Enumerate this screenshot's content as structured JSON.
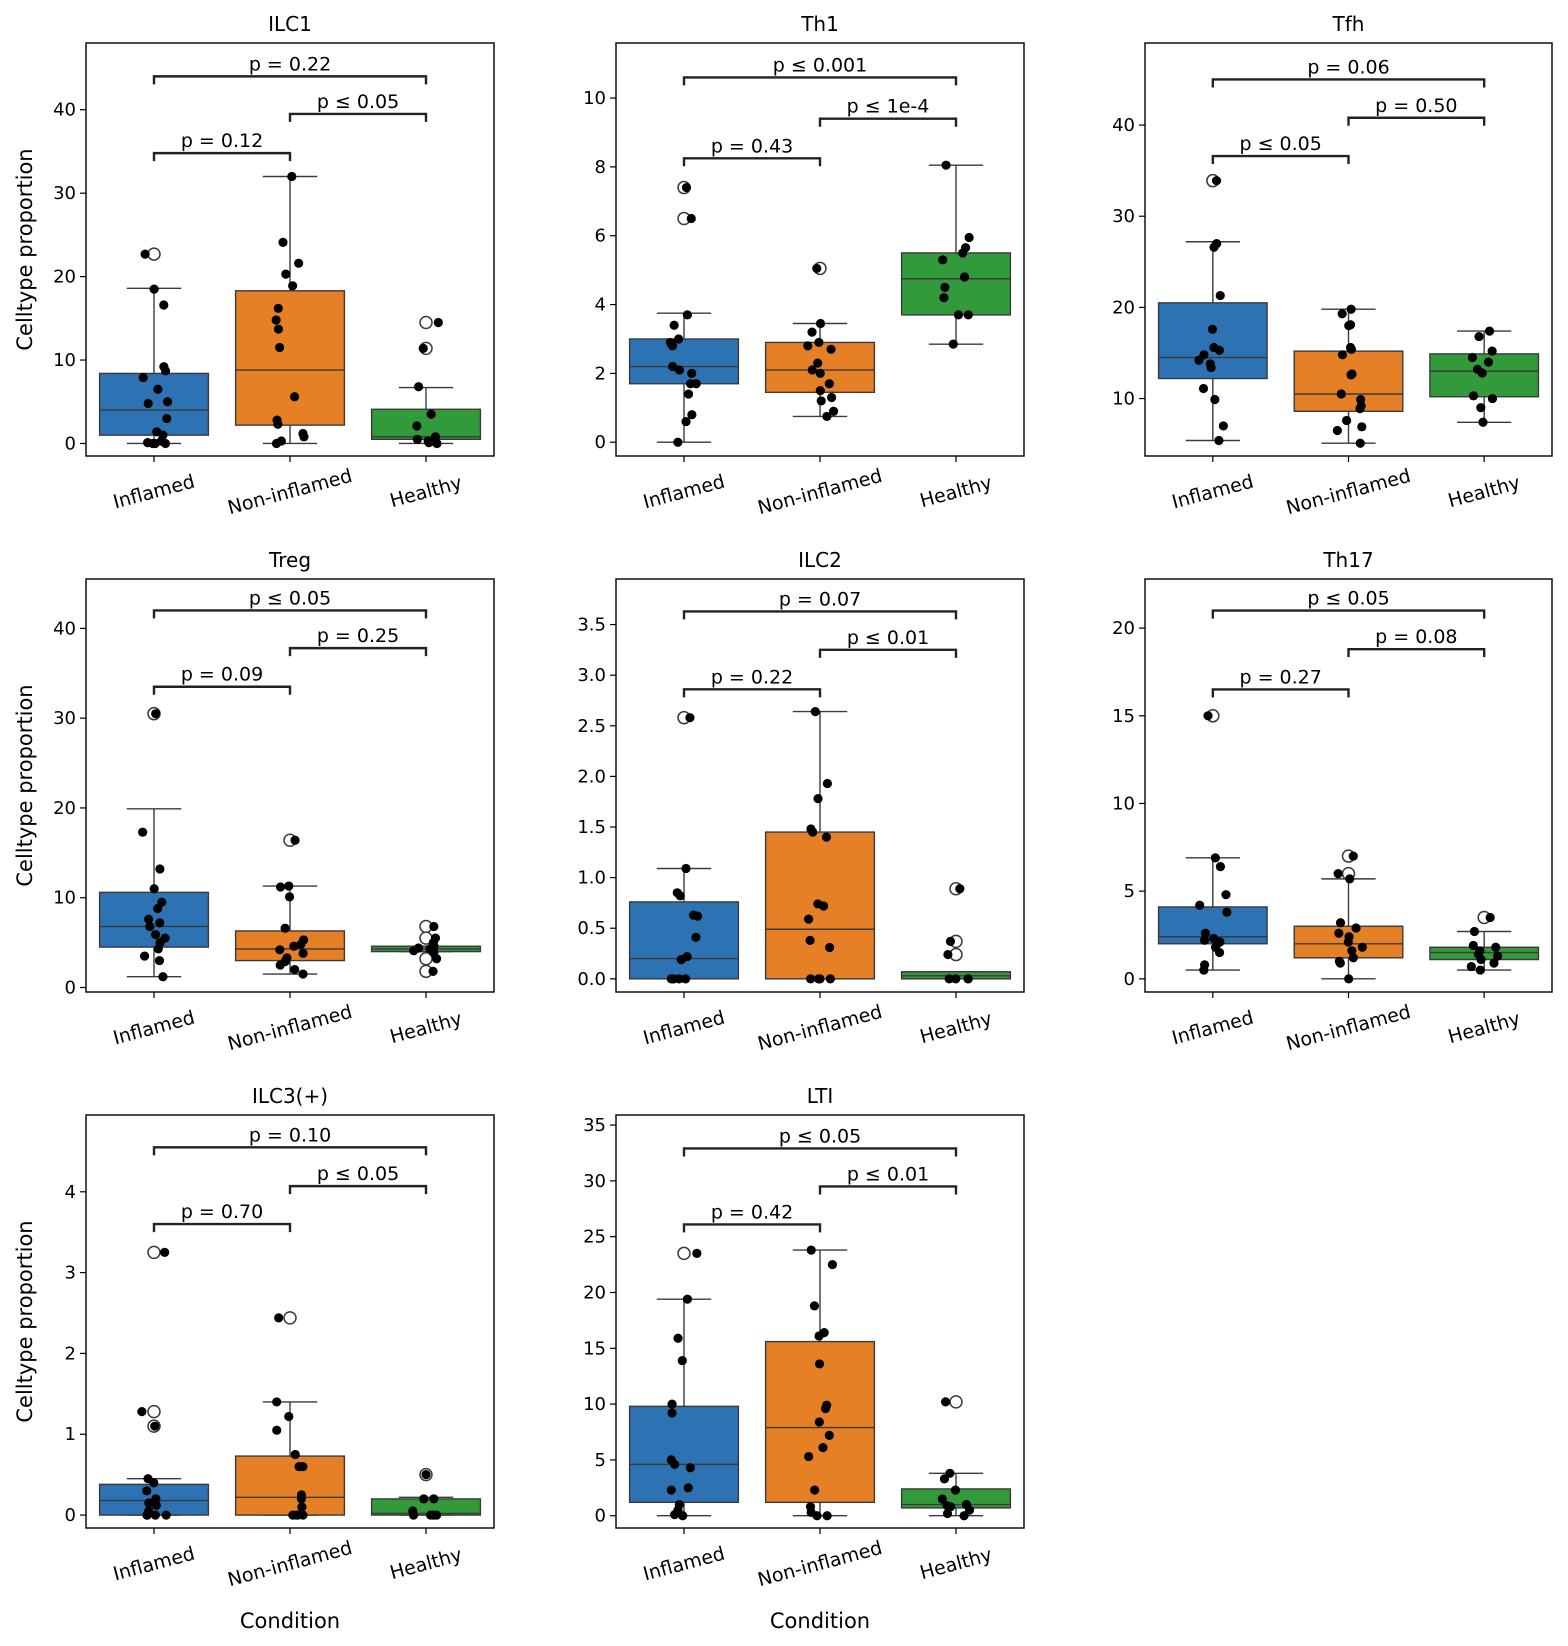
{
  "chart_data": [
    {
      "type": "box",
      "title": "ILC1",
      "ylabel": "Celltype proportion",
      "xlabel": "",
      "categories": [
        "Inflamed",
        "Non-inflamed",
        "Healthy"
      ],
      "ylim": [
        -1.5,
        48.0
      ],
      "yticks": [
        0,
        10,
        20,
        30,
        40
      ],
      "colors": [
        "#2d72b3",
        "#e68026",
        "#329a3a"
      ],
      "boxes": [
        {
          "q1": 1.0,
          "median": 4.0,
          "q3": 8.4,
          "whisker_low": 0,
          "whisker_high": 18.6,
          "outliers": [
            22.7
          ]
        },
        {
          "q1": 2.2,
          "median": 8.8,
          "q3": 18.3,
          "whisker_low": 0,
          "whisker_high": 32.0,
          "outliers": []
        },
        {
          "q1": 0.5,
          "median": 0.8,
          "q3": 4.1,
          "whisker_low": 0,
          "whisker_high": 6.7,
          "outliers": [
            14.5,
            11.4
          ]
        }
      ],
      "points": [
        [
          22.7,
          18.5,
          16.6,
          9.2,
          8.7,
          7.9,
          6.5,
          5.0,
          4.8,
          3.0,
          1.4,
          1.0,
          0.3,
          0.1,
          0.0,
          0.0,
          0.0
        ],
        [
          32.0,
          24.1,
          21.6,
          20.3,
          18.9,
          16.2,
          14.8,
          13.7,
          11.5,
          5.6,
          2.8,
          2.3,
          1.2,
          0.8,
          0.3,
          0.0
        ],
        [
          14.5,
          11.4,
          6.8,
          3.5,
          2.1,
          0.8,
          0.5,
          0.3,
          0.2,
          0.1,
          0.0
        ]
      ],
      "pvalues": [
        {
          "label": "p = 0.22",
          "from": 0,
          "to": 2,
          "y": 44.0
        },
        {
          "label": "p ≤ 0.05",
          "from": 1,
          "to": 2,
          "y": 39.5
        },
        {
          "label": "p = 0.12",
          "from": 0,
          "to": 1,
          "y": 34.8
        }
      ]
    },
    {
      "type": "box",
      "title": "Th1",
      "ylabel": "",
      "xlabel": "",
      "categories": [
        "Inflamed",
        "Non-inflamed",
        "Healthy"
      ],
      "ylim": [
        -0.4,
        11.6
      ],
      "yticks": [
        0,
        2,
        4,
        6,
        8,
        10
      ],
      "colors": [
        "#2d72b3",
        "#e68026",
        "#329a3a"
      ],
      "boxes": [
        {
          "q1": 1.7,
          "median": 2.2,
          "q3": 3.0,
          "whisker_low": 0,
          "whisker_high": 3.75,
          "outliers": [
            7.4,
            6.5
          ]
        },
        {
          "q1": 1.45,
          "median": 2.1,
          "q3": 2.9,
          "whisker_low": 0.75,
          "whisker_high": 3.45,
          "outliers": [
            5.05
          ]
        },
        {
          "q1": 3.7,
          "median": 4.75,
          "q3": 5.5,
          "whisker_low": 2.85,
          "whisker_high": 8.05,
          "outliers": []
        }
      ],
      "points": [
        [
          7.4,
          6.5,
          3.7,
          3.4,
          3.0,
          2.9,
          2.8,
          2.2,
          2.1,
          2.0,
          1.7,
          1.7,
          1.4,
          0.8,
          0.6,
          0.0
        ],
        [
          5.05,
          3.45,
          3.2,
          2.9,
          2.8,
          2.7,
          2.3,
          2.1,
          2.0,
          1.7,
          1.5,
          1.3,
          1.2,
          0.9,
          0.75
        ],
        [
          8.05,
          5.95,
          5.65,
          5.5,
          5.3,
          4.8,
          4.5,
          4.2,
          3.7,
          3.7,
          2.85
        ]
      ],
      "pvalues": [
        {
          "label": "p ≤ 0.001",
          "from": 0,
          "to": 2,
          "y": 10.6
        },
        {
          "label": "p ≤ 1e-4",
          "from": 1,
          "to": 2,
          "y": 9.4
        },
        {
          "label": "p = 0.43",
          "from": 0,
          "to": 1,
          "y": 8.25
        }
      ]
    },
    {
      "type": "box",
      "title": "Tfh",
      "ylabel": "",
      "xlabel": "",
      "categories": [
        "Inflamed",
        "Non-inflamed",
        "Healthy"
      ],
      "ylim": [
        3.7,
        49.0
      ],
      "yticks": [
        10,
        20,
        30,
        40
      ],
      "colors": [
        "#2d72b3",
        "#e68026",
        "#329a3a"
      ],
      "boxes": [
        {
          "q1": 12.2,
          "median": 14.5,
          "q3": 20.5,
          "whisker_low": 5.4,
          "whisker_high": 27.2,
          "outliers": [
            33.9
          ]
        },
        {
          "q1": 8.6,
          "median": 10.5,
          "q3": 15.2,
          "whisker_low": 5.1,
          "whisker_high": 19.8,
          "outliers": []
        },
        {
          "q1": 10.2,
          "median": 13.0,
          "q3": 14.9,
          "whisker_low": 7.4,
          "whisker_high": 17.4,
          "outliers": []
        }
      ],
      "points": [
        [
          33.9,
          27.0,
          26.6,
          21.3,
          17.6,
          15.6,
          15.3,
          14.8,
          14.2,
          13.8,
          13.4,
          11.1,
          9.9,
          7.0,
          5.4
        ],
        [
          19.8,
          19.3,
          18.1,
          18.0,
          15.6,
          15.4,
          14.8,
          12.7,
          12.6,
          10.5,
          9.9,
          9.2,
          8.9,
          7.6,
          6.9,
          6.5,
          5.1
        ],
        [
          17.4,
          16.8,
          15.2,
          14.5,
          14.0,
          13.2,
          12.8,
          10.3,
          10.0,
          9.0,
          7.4
        ]
      ],
      "pvalues": [
        {
          "label": "p = 0.06",
          "from": 0,
          "to": 2,
          "y": 45.0
        },
        {
          "label": "p = 0.50",
          "from": 1,
          "to": 2,
          "y": 40.8
        },
        {
          "label": "p ≤ 0.05",
          "from": 0,
          "to": 1,
          "y": 36.6
        }
      ]
    },
    {
      "type": "box",
      "title": "Treg",
      "ylabel": "Celltype proportion",
      "xlabel": "",
      "categories": [
        "Inflamed",
        "Non-inflamed",
        "Healthy"
      ],
      "ylim": [
        -0.5,
        45.5
      ],
      "yticks": [
        0,
        10,
        20,
        30,
        40
      ],
      "colors": [
        "#2d72b3",
        "#e68026",
        "#329a3a"
      ],
      "boxes": [
        {
          "q1": 4.5,
          "median": 6.8,
          "q3": 10.6,
          "whisker_low": 1.2,
          "whisker_high": 19.9,
          "outliers": [
            30.5
          ]
        },
        {
          "q1": 3.0,
          "median": 4.3,
          "q3": 6.3,
          "whisker_low": 1.5,
          "whisker_high": 11.3,
          "outliers": [
            16.4
          ]
        },
        {
          "q1": 4.0,
          "median": 4.3,
          "q3": 4.6,
          "whisker_low": 4.0,
          "whisker_high": 4.6,
          "outliers": [
            6.8,
            5.5,
            3.2,
            1.8
          ]
        }
      ],
      "points": [
        [
          30.5,
          17.3,
          13.2,
          11.0,
          9.5,
          8.8,
          7.6,
          7.2,
          6.8,
          5.9,
          5.5,
          5.0,
          4.3,
          3.5,
          3.0,
          1.2
        ],
        [
          16.4,
          11.3,
          11.2,
          10.1,
          6.6,
          5.3,
          4.8,
          4.6,
          4.2,
          3.8,
          3.3,
          2.9,
          2.5,
          2.0,
          1.5
        ],
        [
          6.8,
          5.5,
          5.0,
          4.6,
          4.4,
          4.3,
          4.1,
          3.9,
          3.2,
          1.8
        ]
      ],
      "pvalues": [
        {
          "label": "p ≤ 0.05",
          "from": 0,
          "to": 2,
          "y": 42.0
        },
        {
          "label": "p = 0.25",
          "from": 1,
          "to": 2,
          "y": 37.8
        },
        {
          "label": "p = 0.09",
          "from": 0,
          "to": 1,
          "y": 33.5
        }
      ]
    },
    {
      "type": "box",
      "title": "ILC2",
      "ylabel": "",
      "xlabel": "",
      "categories": [
        "Inflamed",
        "Non-inflamed",
        "Healthy"
      ],
      "ylim": [
        -0.13,
        3.95
      ],
      "yticks": [
        "0.0",
        "0.5",
        "1.0",
        "1.5",
        "2.0",
        "2.5",
        "3.0",
        "3.5"
      ],
      "colors": [
        "#2d72b3",
        "#e68026",
        "#329a3a"
      ],
      "boxes": [
        {
          "q1": 0.0,
          "median": 0.2,
          "q3": 0.76,
          "whisker_low": 0,
          "whisker_high": 1.09,
          "outliers": [
            2.58
          ]
        },
        {
          "q1": 0.0,
          "median": 0.49,
          "q3": 1.45,
          "whisker_low": 0,
          "whisker_high": 2.64,
          "outliers": []
        },
        {
          "q1": 0.0,
          "median": 0.03,
          "q3": 0.07,
          "whisker_low": 0,
          "whisker_high": 0.07,
          "outliers": [
            0.89,
            0.37,
            0.24
          ]
        }
      ],
      "points": [
        [
          2.58,
          1.09,
          0.85,
          0.82,
          0.63,
          0.62,
          0.41,
          0.22,
          0.19,
          0.0,
          0.0,
          0.0,
          0.0,
          0.0
        ],
        [
          2.64,
          1.93,
          1.78,
          1.48,
          1.45,
          1.4,
          0.74,
          0.72,
          0.59,
          0.38,
          0.31,
          0.0,
          0.0,
          0.0,
          0.0
        ],
        [
          0.89,
          0.37,
          0.24,
          0.0,
          0.0,
          0.0,
          0.0
        ]
      ],
      "pvalues": [
        {
          "label": "p = 0.07",
          "from": 0,
          "to": 2,
          "y": 3.63
        },
        {
          "label": "p ≤ 0.01",
          "from": 1,
          "to": 2,
          "y": 3.25
        },
        {
          "label": "p = 0.22",
          "from": 0,
          "to": 1,
          "y": 2.86
        }
      ]
    },
    {
      "type": "box",
      "title": "Th17",
      "ylabel": "",
      "xlabel": "",
      "categories": [
        "Inflamed",
        "Non-inflamed",
        "Healthy"
      ],
      "ylim": [
        -0.75,
        22.8
      ],
      "yticks": [
        0,
        5,
        10,
        15,
        20
      ],
      "colors": [
        "#2d72b3",
        "#e68026",
        "#329a3a"
      ],
      "boxes": [
        {
          "q1": 2.0,
          "median": 2.4,
          "q3": 4.1,
          "whisker_low": 0.5,
          "whisker_high": 6.9,
          "outliers": [
            15.0
          ]
        },
        {
          "q1": 1.2,
          "median": 2.0,
          "q3": 3.0,
          "whisker_low": 0.0,
          "whisker_high": 5.7,
          "outliers": [
            7.0,
            6.0
          ]
        },
        {
          "q1": 1.1,
          "median": 1.5,
          "q3": 1.8,
          "whisker_low": 0.5,
          "whisker_high": 2.7,
          "outliers": [
            3.5
          ]
        }
      ],
      "points": [
        [
          15.0,
          6.9,
          6.4,
          4.8,
          4.2,
          3.8,
          2.6,
          2.3,
          2.2,
          2.1,
          2.0,
          1.8,
          1.5,
          0.8,
          0.5
        ],
        [
          7.0,
          6.0,
          5.7,
          3.2,
          2.9,
          2.6,
          2.4,
          2.1,
          1.8,
          1.6,
          1.2,
          1.0,
          0.9,
          0.0
        ],
        [
          3.5,
          2.7,
          1.9,
          1.8,
          1.6,
          1.4,
          1.3,
          1.1,
          0.9,
          0.7,
          0.5
        ]
      ],
      "pvalues": [
        {
          "label": "p ≤ 0.05",
          "from": 0,
          "to": 2,
          "y": 21.0
        },
        {
          "label": "p = 0.08",
          "from": 1,
          "to": 2,
          "y": 18.8
        },
        {
          "label": "p = 0.27",
          "from": 0,
          "to": 1,
          "y": 16.5
        }
      ]
    },
    {
      "type": "box",
      "title": "ILC3(+)",
      "ylabel": "Celltype proportion",
      "xlabel": "Condition",
      "categories": [
        "Inflamed",
        "Non-inflamed",
        "Healthy"
      ],
      "ylim": [
        -0.16,
        4.95
      ],
      "yticks": [
        0,
        1,
        2,
        3,
        4
      ],
      "colors": [
        "#2d72b3",
        "#e68026",
        "#329a3a"
      ],
      "boxes": [
        {
          "q1": 0.0,
          "median": 0.18,
          "q3": 0.38,
          "whisker_low": 0,
          "whisker_high": 0.45,
          "outliers": [
            3.25,
            1.28,
            1.1
          ]
        },
        {
          "q1": 0.0,
          "median": 0.22,
          "q3": 0.73,
          "whisker_low": 0,
          "whisker_high": 1.4,
          "outliers": [
            2.44
          ]
        },
        {
          "q1": 0.0,
          "median": 0.02,
          "q3": 0.2,
          "whisker_low": 0,
          "whisker_high": 0.22,
          "outliers": [
            0.5
          ]
        }
      ],
      "points": [
        [
          3.25,
          1.28,
          1.1,
          0.45,
          0.4,
          0.3,
          0.2,
          0.15,
          0.12,
          0.05,
          0.0,
          0.0,
          0.0,
          0.0
        ],
        [
          2.44,
          1.4,
          1.22,
          1.05,
          0.75,
          0.6,
          0.6,
          0.25,
          0.2,
          0.1,
          0.0,
          0.0,
          0.0,
          0.0
        ],
        [
          0.5,
          0.2,
          0.2,
          0.05,
          0.0,
          0.0,
          0.0,
          0.0,
          0.0
        ]
      ],
      "pvalues": [
        {
          "label": "p = 0.10",
          "from": 0,
          "to": 2,
          "y": 4.55
        },
        {
          "label": "p ≤ 0.05",
          "from": 1,
          "to": 2,
          "y": 4.07
        },
        {
          "label": "p = 0.70",
          "from": 0,
          "to": 1,
          "y": 3.6
        }
      ]
    },
    {
      "type": "box",
      "title": "LTI",
      "ylabel": "",
      "xlabel": "Condition",
      "categories": [
        "Inflamed",
        "Non-inflamed",
        "Healthy"
      ],
      "ylim": [
        -1.1,
        35.9
      ],
      "yticks": [
        0,
        5,
        10,
        15,
        20,
        25,
        30,
        35
      ],
      "colors": [
        "#2d72b3",
        "#e68026",
        "#329a3a"
      ],
      "boxes": [
        {
          "q1": 1.2,
          "median": 4.6,
          "q3": 9.8,
          "whisker_low": 0,
          "whisker_high": 19.4,
          "outliers": [
            23.5
          ]
        },
        {
          "q1": 1.2,
          "median": 7.9,
          "q3": 15.6,
          "whisker_low": 0,
          "whisker_high": 23.8,
          "outliers": []
        },
        {
          "q1": 0.7,
          "median": 1.0,
          "q3": 2.4,
          "whisker_low": 0,
          "whisker_high": 3.8,
          "outliers": [
            10.2
          ]
        }
      ],
      "points": [
        [
          23.5,
          19.4,
          15.9,
          13.9,
          10.0,
          9.2,
          5.0,
          4.6,
          4.3,
          2.5,
          2.3,
          1.0,
          0.5,
          0.1,
          0.0
        ],
        [
          23.8,
          22.5,
          18.8,
          16.4,
          16.1,
          13.6,
          9.9,
          9.6,
          8.4,
          7.2,
          6.1,
          5.3,
          2.3,
          0.8,
          0.3,
          0.0,
          0.0
        ],
        [
          10.2,
          3.8,
          3.3,
          2.3,
          1.5,
          1.0,
          0.9,
          0.8,
          0.5,
          0.2,
          0.0
        ]
      ],
      "pvalues": [
        {
          "label": "p ≤ 0.05",
          "from": 0,
          "to": 2,
          "y": 32.9
        },
        {
          "label": "p ≤ 0.01",
          "from": 1,
          "to": 2,
          "y": 29.5
        },
        {
          "label": "p = 0.42",
          "from": 0,
          "to": 1,
          "y": 26.1
        }
      ]
    }
  ]
}
